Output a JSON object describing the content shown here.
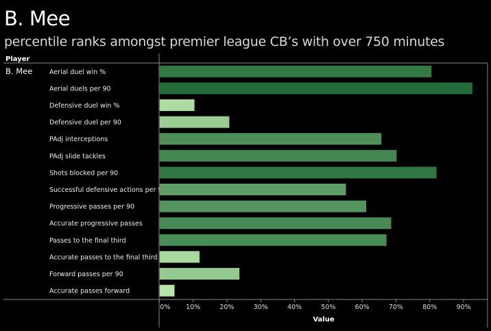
{
  "title": "B. Mee",
  "subtitle": "percentile ranks amongst premier league CB’s with over 750 minutes",
  "chart_data": {
    "type": "bar",
    "orientation": "horizontal",
    "row_header": "Player",
    "player": "B. Mee",
    "categories": [
      "Aerial duel win %",
      "Aerial duels per 90",
      "Defensive duel win %",
      "Defensive duel per 90",
      "PAdj interceptions",
      "PAdj slide tackles",
      "Shots blocked per 90",
      "Successful defensive actions per 90",
      "Progressive passes per 90",
      "Accurate progressive passes",
      "Passes to the final third",
      "Accurate passes to the final third",
      "Forward passes per 90",
      "Accurate passes forward"
    ],
    "values": [
      80.4,
      92.5,
      10.3,
      20.6,
      65.6,
      70.1,
      81.9,
      55.1,
      61.1,
      68.5,
      67.1,
      11.8,
      23.6,
      4.4
    ],
    "xlabel": "Value",
    "xticks": [
      "0%",
      "10%",
      "20%",
      "30%",
      "40%",
      "50%",
      "60%",
      "70%",
      "80%",
      "90%"
    ],
    "xlim": [
      0,
      97
    ],
    "color_low": "#b5e4a6",
    "color_high": "#236b3a"
  }
}
